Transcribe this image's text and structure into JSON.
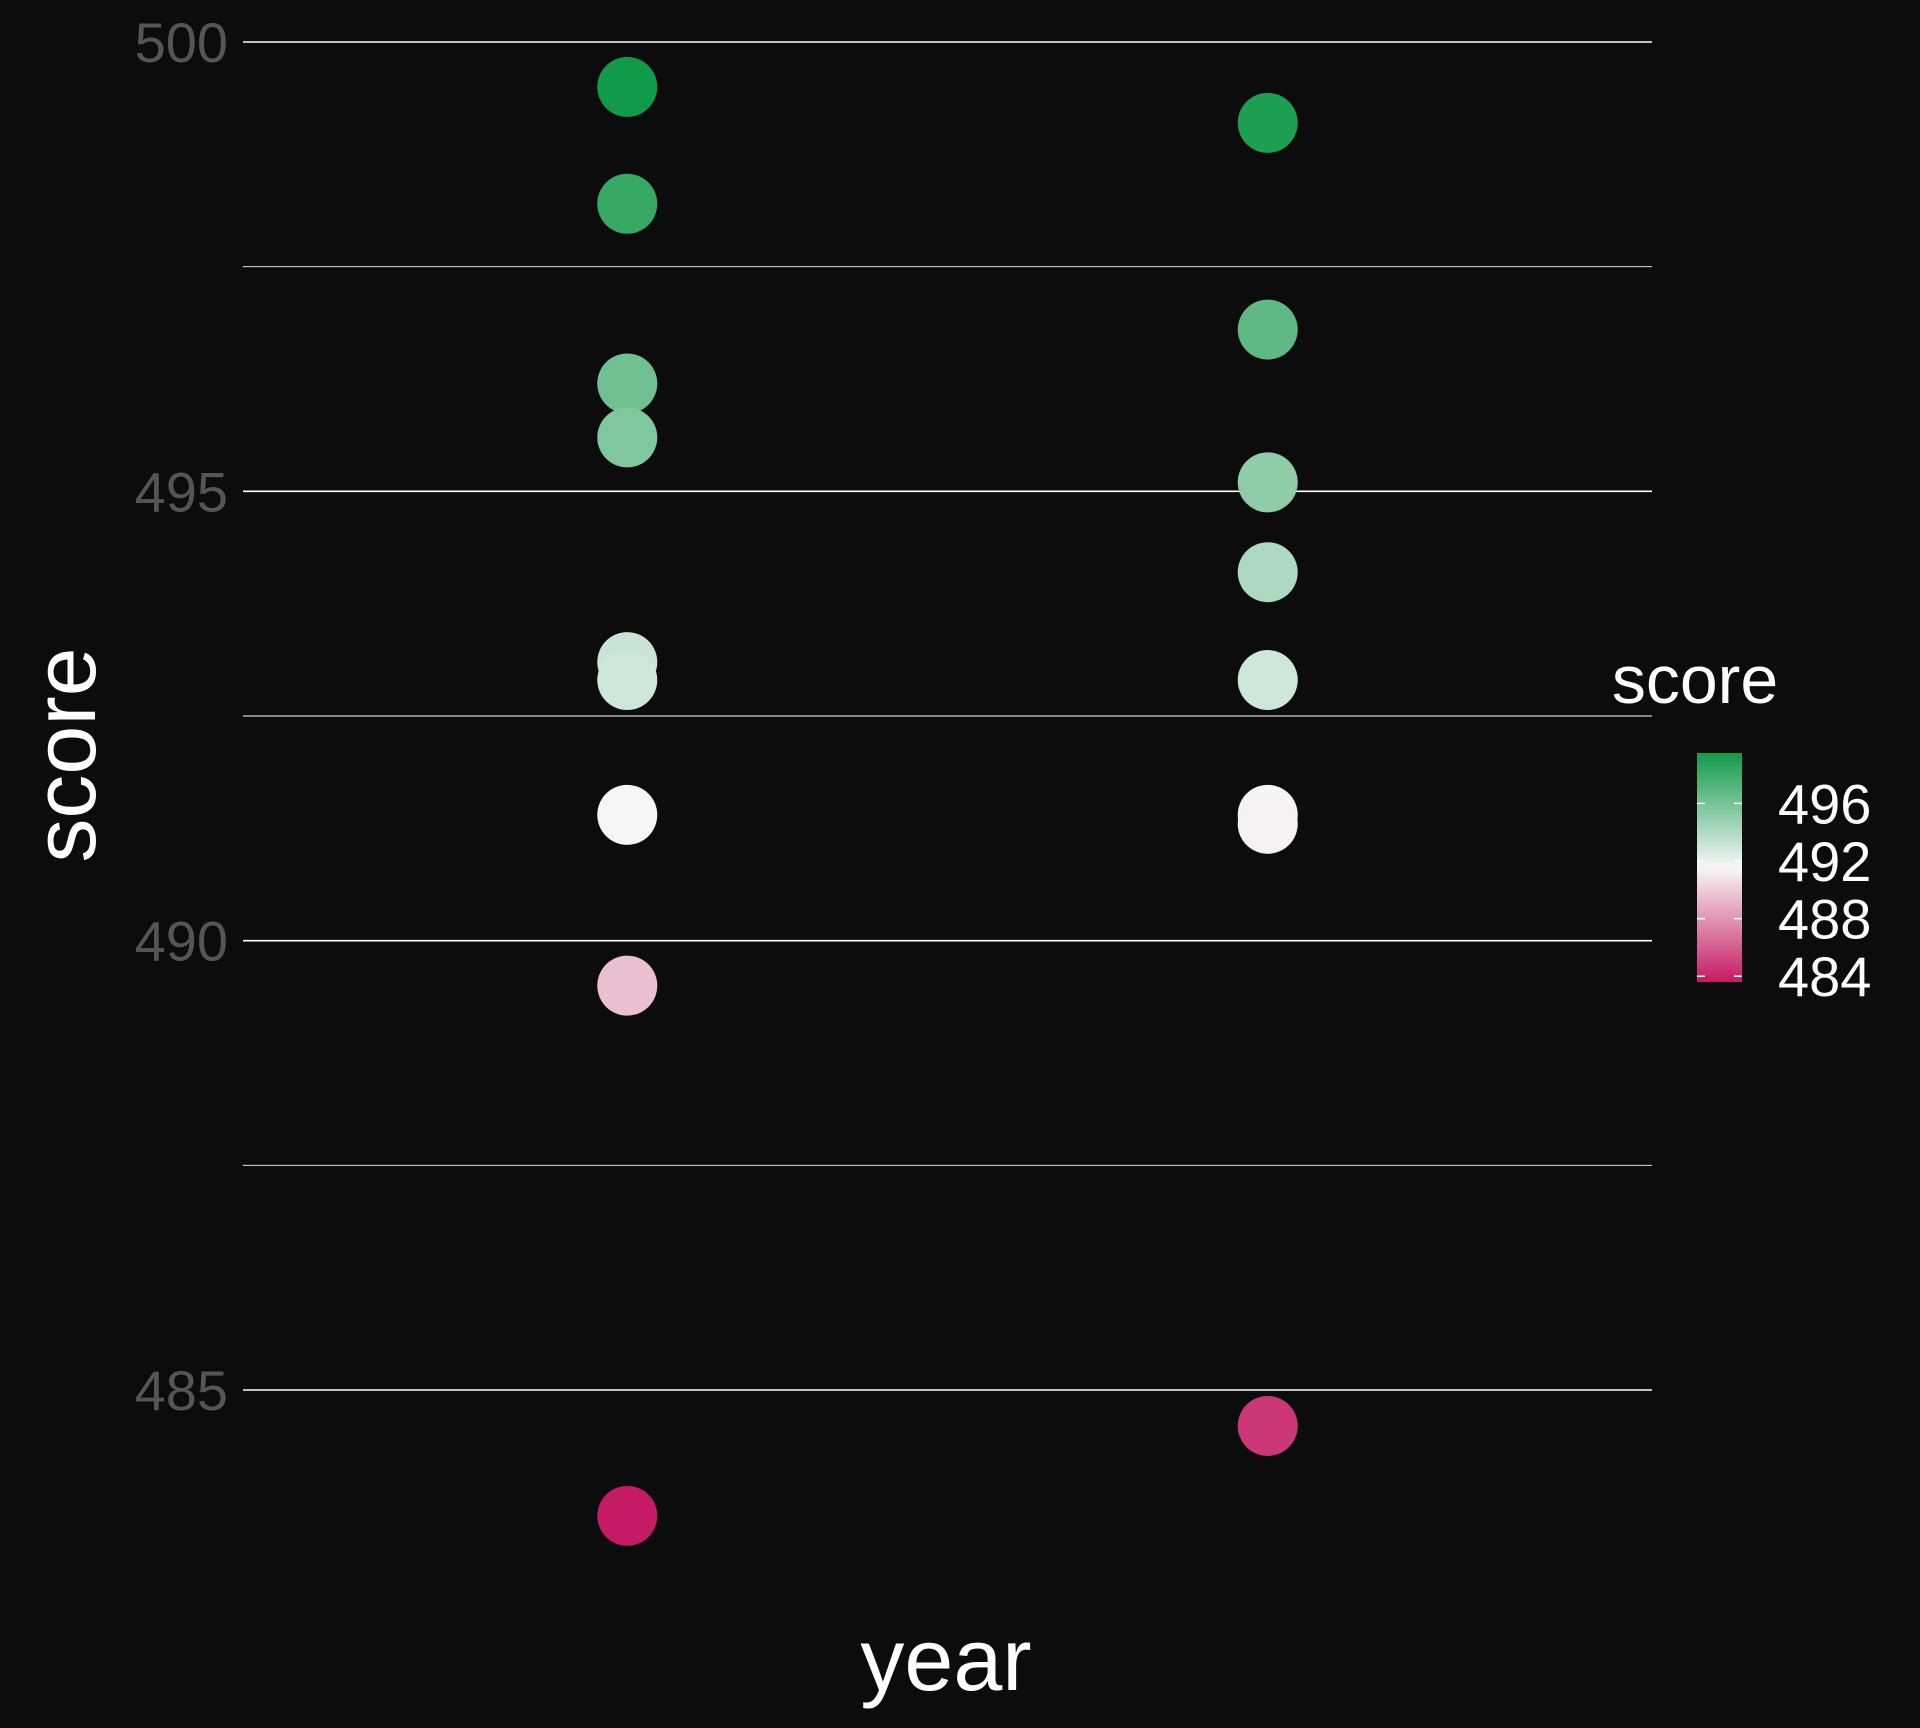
{
  "chart_data": {
    "type": "scatter",
    "xlabel": "year",
    "ylabel": "score",
    "ylim": [
      482,
      500.5
    ],
    "yticks": [
      485,
      490,
      495,
      500
    ],
    "gridlines": [
      485,
      487.5,
      490,
      492.5,
      495,
      497.5,
      500
    ],
    "xlim": [
      0.4,
      2.6
    ],
    "x_groups": [
      1,
      2
    ],
    "x_tick_labels_shown": false,
    "points": [
      {
        "x": 1,
        "y": 499.5
      },
      {
        "x": 1,
        "y": 498.2
      },
      {
        "x": 1,
        "y": 496.2
      },
      {
        "x": 1,
        "y": 495.6
      },
      {
        "x": 1,
        "y": 493.1
      },
      {
        "x": 1,
        "y": 492.9
      },
      {
        "x": 1,
        "y": 491.4
      },
      {
        "x": 1,
        "y": 489.5
      },
      {
        "x": 1,
        "y": 483.6
      },
      {
        "x": 2,
        "y": 499.1
      },
      {
        "x": 2,
        "y": 496.8
      },
      {
        "x": 2,
        "y": 495.1
      },
      {
        "x": 2,
        "y": 494.1
      },
      {
        "x": 2,
        "y": 492.9
      },
      {
        "x": 2,
        "y": 491.4
      },
      {
        "x": 2,
        "y": 491.3
      },
      {
        "x": 2,
        "y": 484.6
      }
    ],
    "color_scale": {
      "title": "score",
      "min": 483.6,
      "mid": 491.5,
      "max": 499.5,
      "low_color": "#c51b64",
      "mid_color": "#f7f7f7",
      "high_color": "#119a4a",
      "legend_labels": [
        "484",
        "488",
        "492",
        "496"
      ],
      "legend_values": [
        484,
        488,
        492,
        496
      ]
    },
    "grid": true,
    "legend_position": "right",
    "background": "#0c0c0c",
    "gridline_color": "#ffffff"
  }
}
